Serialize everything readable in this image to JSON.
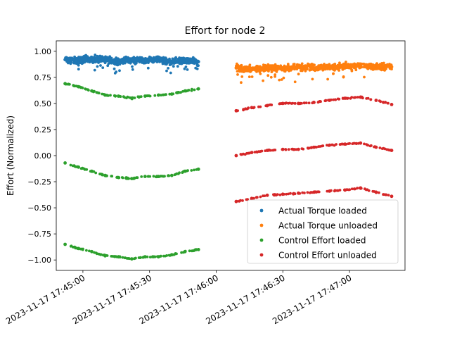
{
  "chart_data": {
    "type": "scatter",
    "title": "Effort for node 2",
    "xlabel": "",
    "ylabel": "Effort (Normalized)",
    "ylim": [
      -1.1,
      1.1
    ],
    "yticks": [
      -1.0,
      -0.75,
      -0.5,
      -0.25,
      0.0,
      0.25,
      0.5,
      0.75,
      1.0
    ],
    "ytick_labels": [
      "−1.00",
      "−0.75",
      "−0.50",
      "−0.25",
      "0.00",
      "0.25",
      "0.50",
      "0.75",
      "1.00"
    ],
    "xlim": [
      "2023-11-17 17:44:48",
      "2023-11-17 17:47:25"
    ],
    "xticks": [
      "2023-11-17 17:45:00",
      "2023-11-17 17:45:30",
      "2023-11-17 17:46:00",
      "2023-11-17 17:46:30",
      "2023-11-17 17:47:00"
    ],
    "xtick_labels": [
      "2023-11-17 17:45:00",
      "2023-11-17 17:45:30",
      "2023-11-17 17:46:00",
      "2023-11-17 17:46:30",
      "2023-11-17 17:47:00"
    ],
    "legend_position": "bottom-right",
    "series": [
      {
        "name": "Actual Torque loaded",
        "color": "#1f77b4",
        "x": [
          "17:44:52",
          "17:44:58",
          "17:45:04",
          "17:45:10",
          "17:45:16",
          "17:45:22",
          "17:45:28",
          "17:45:34",
          "17:45:40",
          "17:45:46",
          "17:45:52"
        ],
        "y": [
          0.92,
          0.91,
          0.93,
          0.92,
          0.9,
          0.92,
          0.91,
          0.92,
          0.9,
          0.91,
          0.9
        ]
      },
      {
        "name": "Actual Torque unloaded",
        "color": "#ff7f0e",
        "x": [
          "17:46:09",
          "17:46:16",
          "17:46:23",
          "17:46:30",
          "17:46:37",
          "17:46:44",
          "17:46:51",
          "17:46:58",
          "17:47:05",
          "17:47:12",
          "17:47:19"
        ],
        "y": [
          0.84,
          0.83,
          0.84,
          0.84,
          0.85,
          0.84,
          0.85,
          0.86,
          0.86,
          0.85,
          0.85
        ]
      },
      {
        "name": "Control Effort loaded",
        "color": "#2ca02c",
        "x": [
          "17:44:52",
          "17:44:58",
          "17:45:04",
          "17:45:10",
          "17:45:16",
          "17:45:22",
          "17:45:28",
          "17:45:34",
          "17:45:40",
          "17:45:46",
          "17:45:52",
          "17:44:52",
          "17:44:58",
          "17:45:04",
          "17:45:10",
          "17:45:16",
          "17:45:22",
          "17:45:28",
          "17:45:34",
          "17:45:40",
          "17:45:46",
          "17:45:52",
          "17:44:52",
          "17:44:58",
          "17:45:04",
          "17:45:10",
          "17:45:16",
          "17:45:22",
          "17:45:28",
          "17:45:34",
          "17:45:40",
          "17:45:46",
          "17:45:52"
        ],
        "y": [
          0.69,
          0.66,
          0.62,
          0.58,
          0.57,
          0.55,
          0.57,
          0.58,
          0.59,
          0.62,
          0.64,
          -0.07,
          -0.11,
          -0.15,
          -0.19,
          -0.21,
          -0.22,
          -0.2,
          -0.2,
          -0.19,
          -0.15,
          -0.13,
          -0.85,
          -0.89,
          -0.92,
          -0.96,
          -0.97,
          -0.99,
          -0.97,
          -0.97,
          -0.95,
          -0.92,
          -0.9
        ]
      },
      {
        "name": "Control Effort unloaded",
        "color": "#d62728",
        "x": [
          "17:46:09",
          "17:46:16",
          "17:46:23",
          "17:46:30",
          "17:46:37",
          "17:46:44",
          "17:46:51",
          "17:46:58",
          "17:47:05",
          "17:47:12",
          "17:47:19",
          "17:46:09",
          "17:46:16",
          "17:46:23",
          "17:46:30",
          "17:46:37",
          "17:46:44",
          "17:46:51",
          "17:46:58",
          "17:47:05",
          "17:47:12",
          "17:47:19",
          "17:46:09",
          "17:46:16",
          "17:46:23",
          "17:46:30",
          "17:46:37",
          "17:46:44",
          "17:46:51",
          "17:46:58",
          "17:47:05",
          "17:47:12",
          "17:47:19"
        ],
        "y": [
          0.43,
          0.46,
          0.48,
          0.5,
          0.5,
          0.51,
          0.53,
          0.55,
          0.56,
          0.53,
          0.49,
          0.0,
          0.03,
          0.05,
          0.06,
          0.06,
          0.08,
          0.1,
          0.11,
          0.12,
          0.08,
          0.05,
          -0.44,
          -0.41,
          -0.38,
          -0.37,
          -0.36,
          -0.35,
          -0.34,
          -0.33,
          -0.31,
          -0.35,
          -0.39
        ]
      }
    ]
  }
}
